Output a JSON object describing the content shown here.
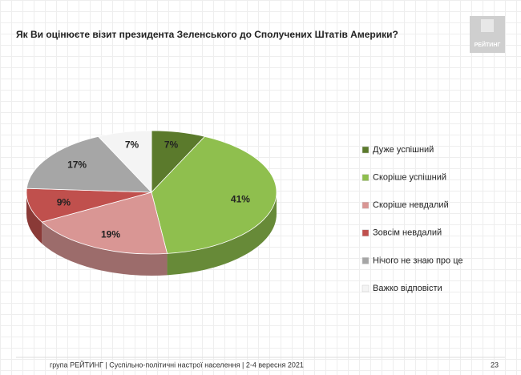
{
  "chart_data": {
    "type": "pie",
    "title": "Як Ви оцінюєте візит президента Зеленського до Сполучених Штатів Америки?",
    "categories": [
      "Дуже успішний",
      "Скоріше успішний",
      "Скоріше невдалий",
      "Зовсім невдалий",
      "Нічого не знаю про це",
      "Важко відповісти"
    ],
    "values": [
      7,
      41,
      19,
      9,
      17,
      7
    ],
    "value_labels": [
      "7%",
      "41%",
      "19%",
      "9%",
      "17%",
      "7%"
    ],
    "colors": [
      "#5b7a2c",
      "#8fbf4e",
      "#d99694",
      "#c0504d",
      "#a6a6a6",
      "#f4f4f4"
    ]
  },
  "logo": "РЕЙТИНГ",
  "footer": "група РЕЙТИНГ | Суспільно-політичні настрої населення  | 2-4 вересня 2021",
  "page_number": "23"
}
